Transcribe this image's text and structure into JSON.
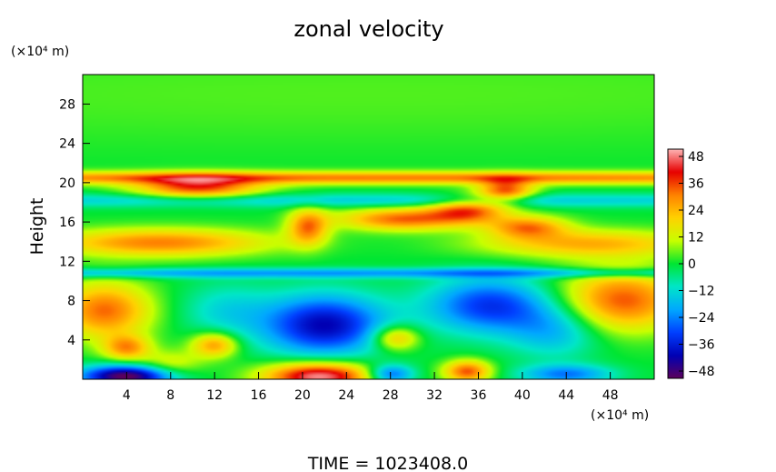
{
  "chart_data": {
    "type": "heatmap",
    "title": "zonal velocity",
    "ylabel": "Height",
    "xlabel": "",
    "x_unit": "(×10⁴ m)",
    "y_unit": "(×10⁴ m)",
    "xlim": [
      0,
      52
    ],
    "ylim": [
      0,
      31
    ],
    "x_ticks": [
      "4",
      "8",
      "12",
      "16",
      "20",
      "24",
      "28",
      "32",
      "36",
      "40",
      "44",
      "48"
    ],
    "y_ticks": [
      "4",
      "8",
      "12",
      "16",
      "20",
      "24",
      "28"
    ],
    "colorbar": {
      "range": [
        -50,
        50
      ],
      "tick_labels": [
        "48",
        "36",
        "24",
        "12",
        "0",
        "−12",
        "−24",
        "−36",
        "−48"
      ],
      "colors": [
        "#5c005c",
        "#0000b4",
        "#0040ff",
        "#00a8ff",
        "#00e6c8",
        "#00e632",
        "#c8ff00",
        "#ffd200",
        "#ff8200",
        "#e60000",
        "#ffb4b4"
      ]
    },
    "features": [
      {
        "x": 26,
        "y": 29,
        "sx": 60,
        "sy": 4,
        "v": 4
      },
      {
        "x": 26,
        "y": 20.5,
        "sx": 60,
        "sy": 0.45,
        "v": 30
      },
      {
        "x": 10.5,
        "y": 19.5,
        "sx": 4,
        "sy": 0.8,
        "v": 36
      },
      {
        "x": 38.5,
        "y": 19.2,
        "sx": 1.8,
        "sy": 0.8,
        "v": 34
      },
      {
        "x": 26,
        "y": 18.2,
        "sx": 60,
        "sy": 0.5,
        "v": -14
      },
      {
        "x": 7,
        "y": 13.9,
        "sx": 7,
        "sy": 1.0,
        "v": 30
      },
      {
        "x": 46,
        "y": 13.8,
        "sx": 7,
        "sy": 1.0,
        "v": 24
      },
      {
        "x": 29,
        "y": 16.3,
        "sx": 4,
        "sy": 0.8,
        "v": 32
      },
      {
        "x": 35,
        "y": 17.2,
        "sx": 2.5,
        "sy": 0.9,
        "v": 32
      },
      {
        "x": 20.5,
        "y": 15.5,
        "sx": 1.3,
        "sy": 1.3,
        "v": 30
      },
      {
        "x": 40.5,
        "y": 15.5,
        "sx": 2.5,
        "sy": 0.8,
        "v": 28
      },
      {
        "x": 26,
        "y": 10.8,
        "sx": 60,
        "sy": 0.35,
        "v": -20
      },
      {
        "x": 2,
        "y": 7,
        "sx": 3,
        "sy": 2,
        "v": 32
      },
      {
        "x": 49,
        "y": 8,
        "sx": 4,
        "sy": 2.2,
        "v": 34
      },
      {
        "x": 22,
        "y": 5.5,
        "sx": 4,
        "sy": 2.2,
        "v": -40
      },
      {
        "x": 37,
        "y": 7.5,
        "sx": 4,
        "sy": 2,
        "v": -32
      },
      {
        "x": 13,
        "y": 7,
        "sx": 3,
        "sy": 2,
        "v": -12
      },
      {
        "x": 43,
        "y": 5,
        "sx": 3,
        "sy": 2,
        "v": -18
      },
      {
        "x": 21.5,
        "y": 0.3,
        "sx": 3.5,
        "sy": 1.0,
        "v": 50
      },
      {
        "x": 4,
        "y": 0.3,
        "sx": 3,
        "sy": 0.8,
        "v": -52
      },
      {
        "x": 35,
        "y": 0.8,
        "sx": 1.5,
        "sy": 0.8,
        "v": 34
      },
      {
        "x": 12,
        "y": 3.5,
        "sx": 1.5,
        "sy": 0.9,
        "v": 28
      },
      {
        "x": 4,
        "y": 3.2,
        "sx": 1.5,
        "sy": 0.9,
        "v": 26
      },
      {
        "x": 28.5,
        "y": 4.2,
        "sx": 1.5,
        "sy": 0.9,
        "v": 26
      },
      {
        "x": 8,
        "y": 1.5,
        "sx": 2,
        "sy": 1.0,
        "v": 14
      },
      {
        "x": 28,
        "y": 0.5,
        "sx": 1.5,
        "sy": 0.7,
        "v": -30
      },
      {
        "x": 44,
        "y": 0.5,
        "sx": 3,
        "sy": 0.7,
        "v": -24
      }
    ]
  },
  "footer": {
    "time_label": "TIME  =  1023408.0"
  }
}
